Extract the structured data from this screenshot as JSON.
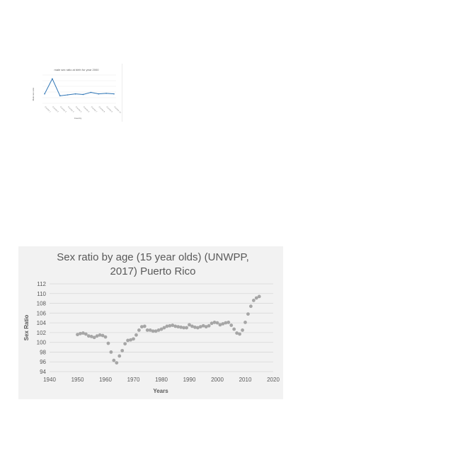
{
  "chart_data": [
    {
      "type": "line",
      "title": "male sex ratio at birth for year 2000",
      "xlabel": "Country",
      "ylabel": "Male sex ratio",
      "categories": [
        "Country 1",
        "Country 2",
        "Country 3",
        "Country 4",
        "Country 5",
        "Country 6",
        "Country 7",
        "Country 8",
        "Country 9",
        "Country 10"
      ],
      "series": [
        {
          "values": [
            105,
            113,
            104,
            104.5,
            105,
            104.7,
            105.8,
            105,
            105.3,
            105
          ]
        }
      ],
      "ylim": [
        100,
        115
      ],
      "color": "#2e75b6"
    },
    {
      "type": "scatter",
      "title": "Sex ratio by age (15 year olds) (UNWPP, 2017) Puerto Rico",
      "xlabel": "Years",
      "ylabel": "Sex Ratio",
      "xlim": [
        1940,
        2020
      ],
      "ylim": [
        94,
        112
      ],
      "xticks": [
        1940,
        1950,
        1960,
        1970,
        1980,
        1990,
        2000,
        2010,
        2020
      ],
      "yticks": [
        94,
        96,
        98,
        100,
        102,
        104,
        106,
        108,
        110,
        112
      ],
      "grid": "horizontal",
      "color": "#a6a6a6",
      "x": [
        1950,
        1951,
        1952,
        1953,
        1954,
        1955,
        1956,
        1957,
        1958,
        1959,
        1960,
        1961,
        1962,
        1963,
        1964,
        1965,
        1966,
        1967,
        1968,
        1969,
        1970,
        1971,
        1972,
        1973,
        1974,
        1975,
        1976,
        1977,
        1978,
        1979,
        1980,
        1981,
        1982,
        1983,
        1984,
        1985,
        1986,
        1987,
        1988,
        1989,
        1990,
        1991,
        1992,
        1993,
        1994,
        1995,
        1996,
        1997,
        1998,
        1999,
        2000,
        2001,
        2002,
        2003,
        2004,
        2005,
        2006,
        2007,
        2008,
        2009,
        2010,
        2011,
        2012,
        2013,
        2014,
        2015
      ],
      "y": [
        101.6,
        101.8,
        101.9,
        101.7,
        101.3,
        101.2,
        101.0,
        101.3,
        101.5,
        101.4,
        101.1,
        99.8,
        98.0,
        96.3,
        95.8,
        97.2,
        98.3,
        99.7,
        100.4,
        100.5,
        100.7,
        101.5,
        102.5,
        103.2,
        103.3,
        102.5,
        102.5,
        102.3,
        102.3,
        102.5,
        102.7,
        103.0,
        103.3,
        103.4,
        103.5,
        103.3,
        103.2,
        103.1,
        103.0,
        103.0,
        103.6,
        103.3,
        103.1,
        103.0,
        103.2,
        103.4,
        103.2,
        103.4,
        103.9,
        104.1,
        104.0,
        103.6,
        103.8,
        104.0,
        104.1,
        103.5,
        102.7,
        101.9,
        101.7,
        102.5,
        104.1,
        105.8,
        107.4,
        108.6,
        109.1,
        109.4
      ]
    }
  ]
}
